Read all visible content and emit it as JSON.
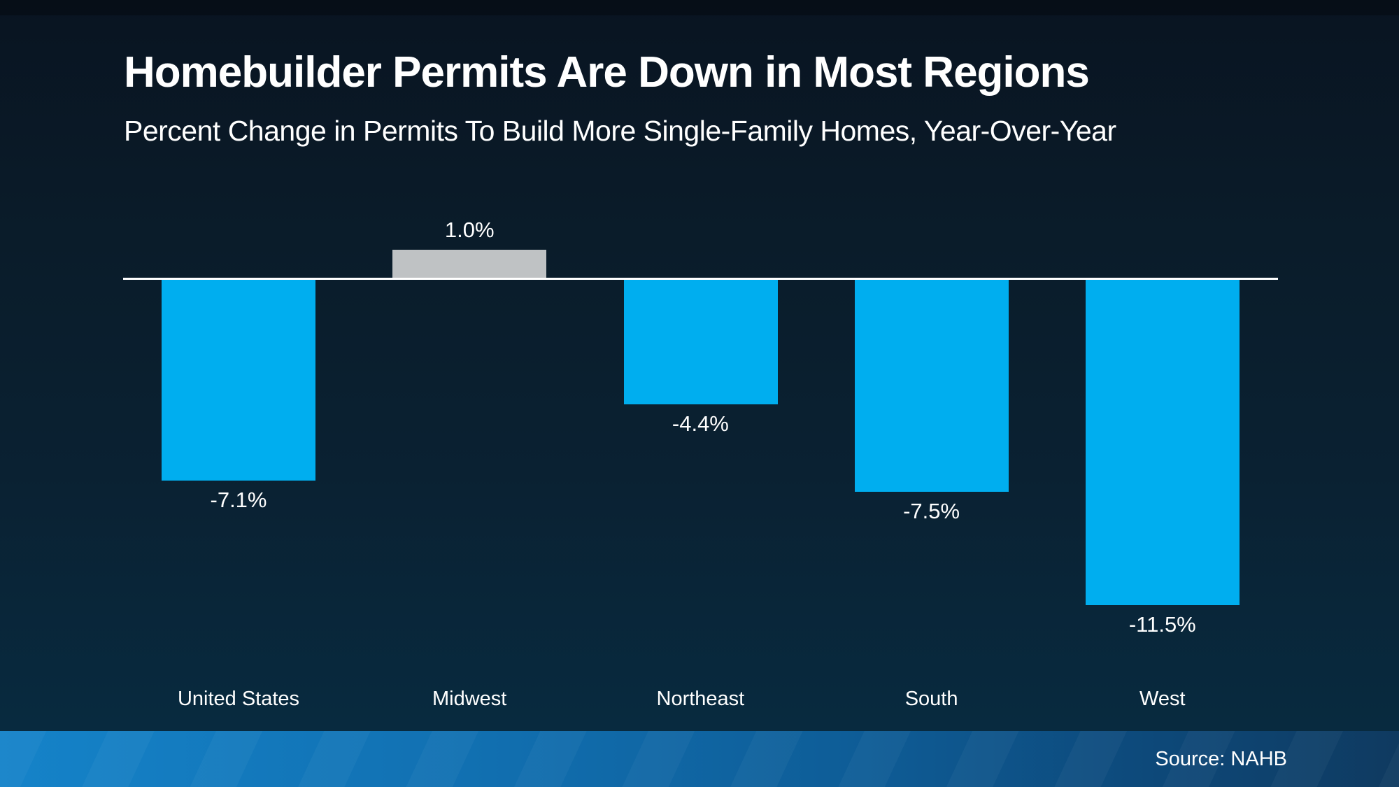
{
  "header": {
    "title": "Homebuilder Permits Are Down in Most Regions",
    "subtitle": "Percent Change in Permits To Build More Single-Family Homes, Year-Over-Year"
  },
  "footer": {
    "source_label": "Source: NAHB"
  },
  "colors": {
    "bar_negative": "#00aeef",
    "bar_positive": "#bfc2c4",
    "baseline": "#ffffff",
    "background_top": "#091421",
    "background_bottom": "#072a40",
    "footer_gradient_left": "#1583c9",
    "footer_gradient_right": "#0f3a60",
    "text": "#ffffff"
  },
  "chart_data": {
    "type": "bar",
    "title": "Homebuilder Permits Are Down in Most Regions",
    "subtitle": "Percent Change in Permits To Build More Single-Family Homes, Year-Over-Year",
    "categories": [
      "United States",
      "Midwest",
      "Northeast",
      "South",
      "West"
    ],
    "values": [
      -7.1,
      1.0,
      -4.4,
      -7.5,
      -11.5
    ],
    "value_labels": [
      "-7.1%",
      "1.0%",
      "-4.4%",
      "-7.5%",
      "-11.5%"
    ],
    "bar_colors": [
      "#00aeef",
      "#bfc2c4",
      "#00aeef",
      "#00aeef",
      "#00aeef"
    ],
    "unit": "percent year-over-year",
    "ylim": [
      -12.5,
      2.5
    ],
    "grid": false,
    "legend": false,
    "baseline_at_zero": true,
    "source": "Source: NAHB"
  }
}
